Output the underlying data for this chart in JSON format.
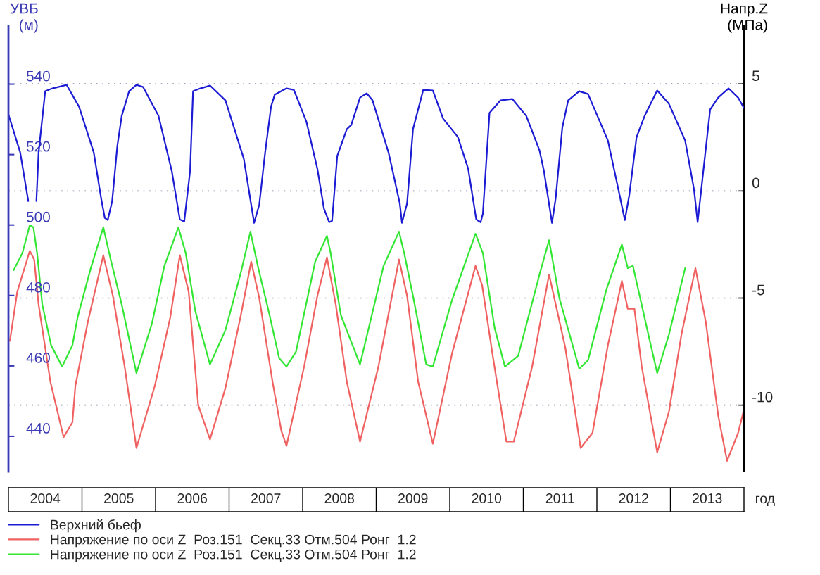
{
  "chart_data": {
    "type": "line",
    "ylabel": "УВБ\n(м)",
    "y2label": "Напр.Z\n(МПа)",
    "xlabel": "год",
    "xlim": [
      2004,
      2014
    ],
    "xticks": [
      {
        "value": 2004.5,
        "label": "2004"
      },
      {
        "value": 2005.5,
        "label": "2005"
      },
      {
        "value": 2006.5,
        "label": "2006"
      },
      {
        "value": 2007.5,
        "label": "2007"
      },
      {
        "value": 2008.5,
        "label": "2008"
      },
      {
        "value": 2009.5,
        "label": "2009"
      },
      {
        "value": 2010.5,
        "label": "2010"
      },
      {
        "value": 2011.5,
        "label": "2011"
      },
      {
        "value": 2012.5,
        "label": "2012"
      },
      {
        "value": 2013.5,
        "label": "2013"
      }
    ],
    "ylim": [
      430,
      556.5
    ],
    "yticks": [
      440,
      460,
      480,
      500,
      520,
      540
    ],
    "y2lim": [
      -13.1,
      7.7
    ],
    "y2ticks": [
      5,
      0,
      -5,
      -10
    ],
    "grid": "y",
    "legend": "bottom",
    "series": [
      {
        "name": "Верхний бьеф",
        "color": "#1c1cd4",
        "axis": "y",
        "x": [
          2004.0,
          2004.16,
          2004.27,
          2004.33,
          2004.38,
          2004.41,
          2004.5,
          2004.6,
          2004.79,
          2004.96,
          2005.16,
          2005.26,
          2005.31,
          2005.35,
          2005.41,
          2005.48,
          2005.54,
          2005.64,
          2005.74,
          2005.83,
          2006.04,
          2006.22,
          2006.33,
          2006.39,
          2006.47,
          2006.51,
          2006.61,
          2006.74,
          2006.95,
          2007.2,
          2007.34,
          2007.41,
          2007.49,
          2007.57,
          2007.62,
          2007.78,
          2007.88,
          2008.05,
          2008.2,
          2008.29,
          2008.36,
          2008.4,
          2008.47,
          2008.6,
          2008.66,
          2008.78,
          2008.87,
          2008.95,
          2009.17,
          2009.32,
          2009.35,
          2009.42,
          2009.5,
          2009.64,
          2009.77,
          2009.91,
          2010.11,
          2010.25,
          2010.36,
          2010.42,
          2010.45,
          2010.54,
          2010.69,
          2010.85,
          2011.04,
          2011.22,
          2011.28,
          2011.39,
          2011.44,
          2011.53,
          2011.61,
          2011.76,
          2011.88,
          2012.15,
          2012.31,
          2012.38,
          2012.44,
          2012.54,
          2012.65,
          2012.82,
          2012.98,
          2013.2,
          2013.32,
          2013.37,
          2013.42,
          2013.54,
          2013.65,
          2013.79,
          2013.92,
          2014.0
        ],
        "values": [
          531.4,
          520.6,
          506.8,
          null,
          506.8,
          520.6,
          538.0,
          538.8,
          539.8,
          533.6,
          520.6,
          507.6,
          502.0,
          501.4,
          506.8,
          522.4,
          531.0,
          538.0,
          539.8,
          539.2,
          531.0,
          515.4,
          501.6,
          501.0,
          515.4,
          538.0,
          538.8,
          539.6,
          535.4,
          518.8,
          500.6,
          505.8,
          520.6,
          533.6,
          537.0,
          538.8,
          538.4,
          529.4,
          516.0,
          504.6,
          500.8,
          501.2,
          519.6,
          527.2,
          528.4,
          536.2,
          537.4,
          535.4,
          520.4,
          506.2,
          500.6,
          506.2,
          527.2,
          538.4,
          538.2,
          530.2,
          525.0,
          516.0,
          501.6,
          500.8,
          503.2,
          531.8,
          535.4,
          535.8,
          531.0,
          521.2,
          515.4,
          500.6,
          507.6,
          527.6,
          535.4,
          538.0,
          537.2,
          524.0,
          508.4,
          501.4,
          508.4,
          525.0,
          531.0,
          538.2,
          534.4,
          524.0,
          510.2,
          500.8,
          510.2,
          532.8,
          536.2,
          538.8,
          536.2,
          533.2
        ]
      },
      {
        "name": "Напряжение по оси Z  Роз.151  Секц.33 Отм.504 Ронг  1.2",
        "color": "#f06262",
        "axis": "y2",
        "x": [
          2004.02,
          2004.12,
          2004.29,
          2004.35,
          2004.41,
          2004.57,
          2004.75,
          2004.87,
          2004.91,
          2005.08,
          2005.29,
          2005.42,
          2005.58,
          2005.74,
          2005.99,
          2006.2,
          2006.33,
          2006.45,
          2006.58,
          2006.74,
          2006.95,
          2007.16,
          2007.3,
          2007.41,
          2007.59,
          2007.71,
          2007.78,
          2008.02,
          2008.2,
          2008.33,
          2008.45,
          2008.6,
          2008.78,
          2009.03,
          2009.31,
          2009.42,
          2009.57,
          2009.77,
          2010.03,
          2010.35,
          2010.44,
          2010.58,
          2010.77,
          2010.87,
          2011.12,
          2011.35,
          2011.57,
          2011.78,
          2011.94,
          2012.15,
          2012.34,
          2012.42,
          2012.51,
          2012.61,
          2012.82,
          2012.98,
          2013.15,
          2013.34,
          2013.48,
          2013.65,
          2013.77,
          2013.92,
          2014.0
        ],
        "values": [
          -7.0,
          -4.7,
          -2.8,
          -3.2,
          -5.3,
          -8.9,
          -11.5,
          -10.8,
          -9.1,
          -6.1,
          -3.0,
          -4.9,
          -8.2,
          -12.0,
          -9.1,
          -5.9,
          -3.0,
          -4.7,
          -10.0,
          -11.6,
          -9.2,
          -5.8,
          -3.3,
          -5.0,
          -8.9,
          -11.2,
          -11.9,
          -8.2,
          -4.9,
          -3.1,
          -5.3,
          -8.9,
          -11.7,
          -8.2,
          -3.2,
          -4.9,
          -8.9,
          -11.8,
          -7.6,
          -3.5,
          -4.4,
          -7.6,
          -11.7,
          -11.7,
          -8.2,
          -3.9,
          -7.3,
          -12.0,
          -11.3,
          -7.2,
          -4.2,
          -5.5,
          -5.5,
          -8.2,
          -12.2,
          -10.3,
          -6.7,
          -3.6,
          -6.1,
          -10.5,
          -12.6,
          -11.3,
          -10.2
        ]
      },
      {
        "name": "Напряжение по оси Z  Роз.151  Секц.33 Отм.504 Ронг  1.2",
        "color": "#33e633",
        "axis": "y2",
        "x": [
          2004.07,
          2004.19,
          2004.29,
          2004.34,
          2004.39,
          2004.46,
          2004.58,
          2004.73,
          2004.87,
          2004.94,
          2005.12,
          2005.29,
          2005.39,
          2005.54,
          2005.74,
          2005.95,
          2006.12,
          2006.31,
          2006.41,
          2006.54,
          2006.74,
          2006.95,
          2007.16,
          2007.29,
          2007.39,
          2007.55,
          2007.68,
          2007.78,
          2007.91,
          2008.17,
          2008.33,
          2008.38,
          2008.52,
          2008.78,
          2009.1,
          2009.31,
          2009.38,
          2009.5,
          2009.68,
          2009.77,
          2010.03,
          2010.35,
          2010.45,
          2010.61,
          2010.75,
          2010.93,
          2011.22,
          2011.35,
          2011.49,
          2011.76,
          2011.88,
          2012.13,
          2012.34,
          2012.42,
          2012.49,
          2012.7,
          2012.82,
          2012.98,
          2013.2
        ],
        "values": [
          -3.7,
          -2.9,
          -1.6,
          -1.7,
          -2.9,
          -5.3,
          -7.2,
          -8.2,
          -7.2,
          -5.9,
          -3.6,
          -1.7,
          -3.2,
          -5.3,
          -8.5,
          -6.2,
          -3.5,
          -1.7,
          -2.9,
          -5.6,
          -8.1,
          -6.5,
          -3.8,
          -1.9,
          -3.5,
          -5.8,
          -7.8,
          -8.2,
          -7.5,
          -3.3,
          -2.1,
          -2.9,
          -5.8,
          -8.1,
          -3.5,
          -1.9,
          -2.9,
          -4.9,
          -8.1,
          -8.2,
          -5.1,
          -2.0,
          -2.9,
          -6.4,
          -8.2,
          -7.7,
          -3.9,
          -2.3,
          -5.0,
          -8.3,
          -7.9,
          -4.6,
          -2.5,
          -3.6,
          -3.5,
          -6.7,
          -8.5,
          -6.7,
          -3.6
        ]
      }
    ]
  }
}
